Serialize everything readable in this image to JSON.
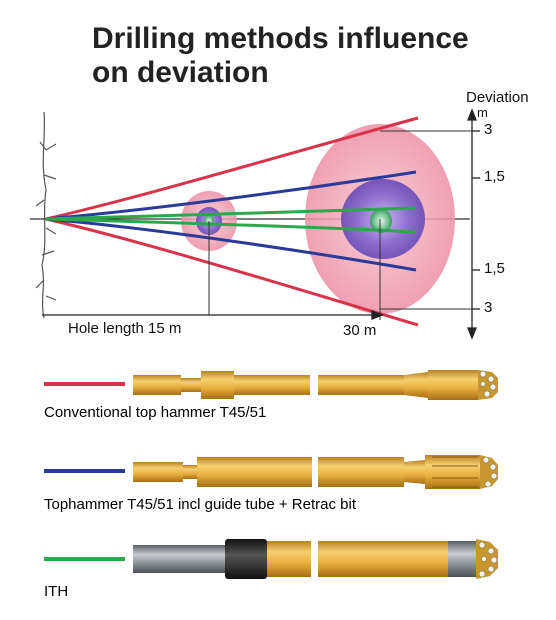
{
  "title": {
    "line1": "Drilling methods influence",
    "line2": "on deviation"
  },
  "deviation_axis": {
    "title": "Deviation",
    "unit": "m",
    "ticks": [
      "3",
      "1,5",
      "1,5",
      "3"
    ]
  },
  "length_axis": {
    "label_15": "Hole length 15 m",
    "label_30": "30 m"
  },
  "methods": [
    {
      "label": "Conventional top hammer T45/51",
      "color": "#d8334a"
    },
    {
      "label": "Tophammer T45/51 incl guide tube + Retrac bit",
      "color": "#2a3a9a"
    },
    {
      "label": "ITH",
      "color": "#2aa84a"
    }
  ],
  "colors": {
    "rod": "#e8b040",
    "rod_dark": "#b8801c",
    "ith_body": "#8a9096",
    "spread_outer": "#ef9aa8",
    "spread_inner": "#8f6fc8"
  }
}
